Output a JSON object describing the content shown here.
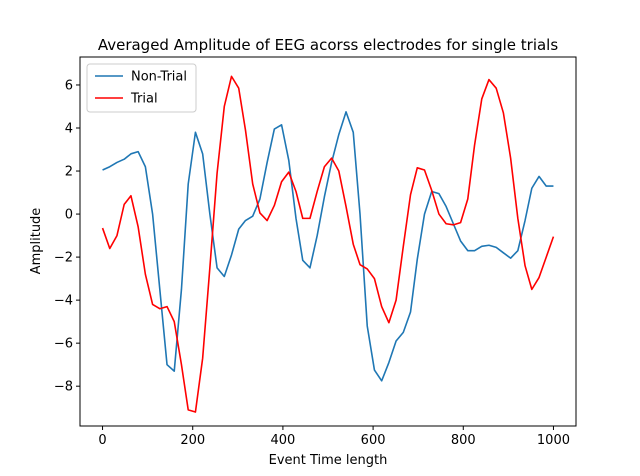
{
  "chart_data": {
    "type": "line",
    "title": "Averaged Amplitude of EEG acorss electrodes for single trials",
    "xlabel": "Event Time length",
    "ylabel": "Amplitude",
    "xlim": [
      -50,
      1050
    ],
    "ylim": [
      -9.85,
      7.3
    ],
    "xticks": [
      0,
      200,
      400,
      600,
      800,
      1000
    ],
    "yticks": [
      -8,
      -6,
      -4,
      -2,
      0,
      2,
      4,
      6
    ],
    "grid": false,
    "legend_position": "top-left",
    "series": [
      {
        "name": "Non-Trial",
        "color": "#1f77b4",
        "x": [
          0,
          16,
          32,
          48,
          63,
          79,
          95,
          111,
          127,
          143,
          159,
          175,
          190,
          206,
          222,
          238,
          254,
          270,
          286,
          302,
          317,
          333,
          349,
          365,
          381,
          397,
          413,
          429,
          444,
          460,
          476,
          492,
          508,
          524,
          540,
          556,
          571,
          587,
          603,
          619,
          635,
          651,
          667,
          683,
          698,
          714,
          730,
          746,
          762,
          778,
          794,
          810,
          825,
          841,
          857,
          873,
          889,
          905,
          921,
          937,
          952,
          968,
          984,
          1000
        ],
        "y": [
          2.05,
          2.2,
          2.4,
          2.55,
          2.8,
          2.9,
          2.2,
          0.0,
          -3.5,
          -7.0,
          -7.3,
          -3.5,
          1.4,
          3.8,
          2.8,
          0.0,
          -2.5,
          -2.9,
          -1.9,
          -0.7,
          -0.3,
          -0.1,
          0.7,
          2.4,
          3.95,
          4.15,
          2.5,
          -0.2,
          -2.15,
          -2.5,
          -1.0,
          0.8,
          2.4,
          3.7,
          4.75,
          3.8,
          0.0,
          -5.2,
          -7.25,
          -7.75,
          -6.9,
          -5.9,
          -5.5,
          -4.55,
          -2.1,
          0.0,
          1.05,
          0.95,
          0.35,
          -0.45,
          -1.25,
          -1.7,
          -1.7,
          -1.5,
          -1.45,
          -1.55,
          -1.8,
          -2.05,
          -1.7,
          -0.3,
          1.2,
          1.75,
          1.3,
          1.3
        ]
      },
      {
        "name": "Trial",
        "color": "#ff0000",
        "x": [
          0,
          16,
          32,
          48,
          63,
          79,
          95,
          111,
          127,
          143,
          159,
          175,
          190,
          206,
          222,
          238,
          254,
          270,
          286,
          302,
          317,
          333,
          349,
          365,
          381,
          397,
          413,
          429,
          444,
          460,
          476,
          492,
          508,
          524,
          540,
          556,
          571,
          587,
          603,
          619,
          635,
          651,
          667,
          683,
          698,
          714,
          730,
          746,
          762,
          778,
          794,
          810,
          825,
          841,
          857,
          873,
          889,
          905,
          921,
          937,
          952,
          968,
          984,
          1000
        ],
        "y": [
          -0.65,
          -1.6,
          -1.0,
          0.45,
          0.85,
          -0.6,
          -2.8,
          -4.2,
          -4.4,
          -4.3,
          -5.0,
          -7.0,
          -9.1,
          -9.2,
          -6.7,
          -2.5,
          1.9,
          5.0,
          6.4,
          5.85,
          3.9,
          1.4,
          0.05,
          -0.3,
          0.4,
          1.5,
          1.95,
          1.05,
          -0.2,
          -0.2,
          1.05,
          2.2,
          2.6,
          2.0,
          0.35,
          -1.4,
          -2.35,
          -2.55,
          -3.0,
          -4.3,
          -5.05,
          -4.0,
          -1.5,
          0.9,
          2.15,
          2.05,
          1.1,
          0.0,
          -0.45,
          -0.5,
          -0.4,
          0.7,
          3.2,
          5.35,
          6.25,
          5.85,
          4.7,
          2.6,
          -0.2,
          -2.4,
          -3.5,
          -2.95,
          -2.0,
          -1.05
        ]
      }
    ]
  }
}
